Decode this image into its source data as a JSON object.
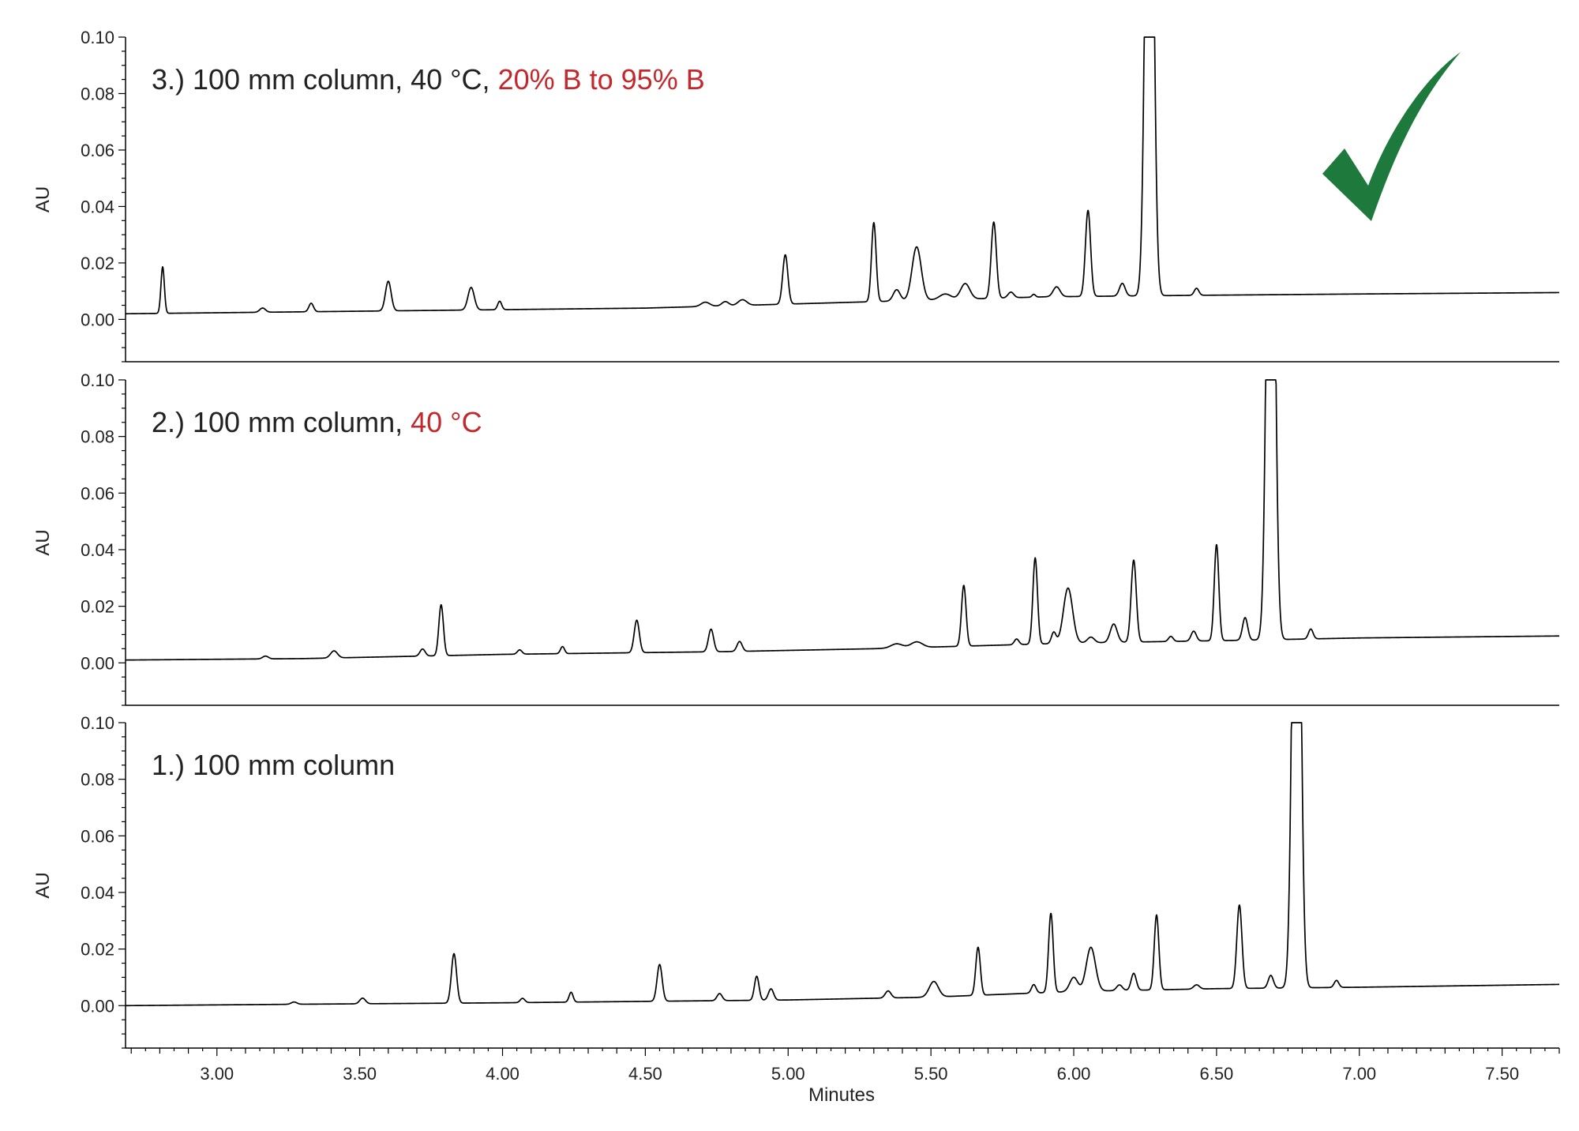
{
  "chart_data": {
    "type": "line",
    "xlabel": "Minutes",
    "xlim": [
      2.68,
      7.7
    ],
    "x_ticks": [
      "3.00",
      "3.50",
      "4.00",
      "4.50",
      "5.00",
      "5.50",
      "6.00",
      "6.50",
      "7.00",
      "7.50"
    ],
    "colors": {
      "trace": "#000000",
      "highlight": "#c3282d",
      "text": "#222222",
      "check": "#1e7a3c"
    },
    "panels": [
      {
        "title_parts": [
          "3.) 100 mm column, 40 °C, ",
          "20% B to 95% B"
        ],
        "ylabel": "AU",
        "ylim": [
          -0.015,
          0.1
        ],
        "y_ticks": [
          "0.10",
          "0.08",
          "0.06",
          "0.04",
          "0.02",
          "0.00"
        ],
        "check_icon": "checkmark-icon",
        "baseline": [
          [
            2.68,
            0.002
          ],
          [
            4.5,
            0.004
          ],
          [
            5.2,
            0.006
          ],
          [
            5.9,
            0.008
          ],
          [
            6.4,
            0.0085
          ],
          [
            7.0,
            0.009
          ],
          [
            7.7,
            0.0095
          ]
        ],
        "peaks": [
          [
            2.81,
            0.0165,
            0.006
          ],
          [
            3.16,
            0.0015,
            0.01
          ],
          [
            3.33,
            0.003,
            0.008
          ],
          [
            3.6,
            0.0105,
            0.01
          ],
          [
            3.89,
            0.008,
            0.011
          ],
          [
            3.99,
            0.003,
            0.007
          ],
          [
            4.71,
            0.0015,
            0.015
          ],
          [
            4.78,
            0.0015,
            0.012
          ],
          [
            4.84,
            0.002,
            0.015
          ],
          [
            4.99,
            0.0175,
            0.009
          ],
          [
            5.3,
            0.028,
            0.008
          ],
          [
            5.38,
            0.004,
            0.012
          ],
          [
            5.45,
            0.019,
            0.016
          ],
          [
            5.55,
            0.002,
            0.02
          ],
          [
            5.62,
            0.0055,
            0.016
          ],
          [
            5.72,
            0.027,
            0.009
          ],
          [
            5.78,
            0.002,
            0.01
          ],
          [
            5.86,
            0.001,
            0.006
          ],
          [
            5.94,
            0.0035,
            0.012
          ],
          [
            6.05,
            0.0305,
            0.009
          ],
          [
            6.17,
            0.0045,
            0.01
          ],
          [
            6.265,
            0.25,
            0.013
          ],
          [
            6.43,
            0.0025,
            0.008
          ]
        ]
      },
      {
        "title_parts": [
          "2.) 100 mm column, ",
          "40 °C"
        ],
        "ylabel": "AU",
        "ylim": [
          -0.015,
          0.1
        ],
        "y_ticks": [
          "0.10",
          "0.08",
          "0.06",
          "0.04",
          "0.02",
          "0.00"
        ],
        "baseline": [
          [
            2.68,
            0.001
          ],
          [
            3.3,
            0.0015
          ],
          [
            4.0,
            0.003
          ],
          [
            4.8,
            0.004
          ],
          [
            5.3,
            0.005
          ],
          [
            6.0,
            0.007
          ],
          [
            6.6,
            0.008
          ],
          [
            7.0,
            0.0088
          ],
          [
            7.7,
            0.0095
          ]
        ],
        "peaks": [
          [
            3.17,
            0.001,
            0.01
          ],
          [
            3.41,
            0.0025,
            0.012
          ],
          [
            3.72,
            0.0025,
            0.009
          ],
          [
            3.785,
            0.018,
            0.008
          ],
          [
            4.06,
            0.0015,
            0.008
          ],
          [
            4.21,
            0.0025,
            0.007
          ],
          [
            4.47,
            0.0115,
            0.009
          ],
          [
            4.73,
            0.008,
            0.009
          ],
          [
            4.83,
            0.0035,
            0.009
          ],
          [
            5.38,
            0.0015,
            0.02
          ],
          [
            5.45,
            0.002,
            0.02
          ],
          [
            5.615,
            0.0215,
            0.008
          ],
          [
            5.8,
            0.002,
            0.008
          ],
          [
            5.865,
            0.0305,
            0.008
          ],
          [
            5.93,
            0.004,
            0.008
          ],
          [
            5.98,
            0.0195,
            0.016
          ],
          [
            6.06,
            0.002,
            0.012
          ],
          [
            6.14,
            0.0065,
            0.012
          ],
          [
            6.21,
            0.029,
            0.009
          ],
          [
            6.34,
            0.0018,
            0.008
          ],
          [
            6.42,
            0.0035,
            0.009
          ],
          [
            6.5,
            0.034,
            0.008
          ],
          [
            6.6,
            0.008,
            0.009
          ],
          [
            6.69,
            0.25,
            0.013
          ],
          [
            6.83,
            0.0035,
            0.008
          ]
        ]
      },
      {
        "title_parts": [
          "1.) 100 mm column"
        ],
        "ylabel": "AU",
        "ylim": [
          -0.015,
          0.1
        ],
        "y_ticks": [
          "0.10",
          "0.08",
          "0.06",
          "0.04",
          "0.02",
          "0.00"
        ],
        "baseline": [
          [
            2.68,
            0.0
          ],
          [
            3.3,
            0.0005
          ],
          [
            4.0,
            0.001
          ],
          [
            5.0,
            0.002
          ],
          [
            5.5,
            0.003
          ],
          [
            6.0,
            0.005
          ],
          [
            6.5,
            0.006
          ],
          [
            7.0,
            0.0065
          ],
          [
            7.7,
            0.0075
          ]
        ],
        "peaks": [
          [
            3.27,
            0.0008,
            0.01
          ],
          [
            3.51,
            0.002,
            0.01
          ],
          [
            3.83,
            0.0175,
            0.009
          ],
          [
            4.07,
            0.0015,
            0.008
          ],
          [
            4.24,
            0.0035,
            0.007
          ],
          [
            4.55,
            0.013,
            0.009
          ],
          [
            4.76,
            0.0025,
            0.009
          ],
          [
            4.89,
            0.0085,
            0.008
          ],
          [
            4.94,
            0.004,
            0.009
          ],
          [
            5.35,
            0.0025,
            0.01
          ],
          [
            5.51,
            0.0055,
            0.016
          ],
          [
            5.665,
            0.017,
            0.008
          ],
          [
            5.86,
            0.003,
            0.008
          ],
          [
            5.92,
            0.028,
            0.008
          ],
          [
            6.0,
            0.005,
            0.014
          ],
          [
            6.06,
            0.0155,
            0.016
          ],
          [
            6.16,
            0.002,
            0.01
          ],
          [
            6.21,
            0.006,
            0.009
          ],
          [
            6.29,
            0.0265,
            0.008
          ],
          [
            6.43,
            0.0015,
            0.01
          ],
          [
            6.58,
            0.0295,
            0.009
          ],
          [
            6.69,
            0.0045,
            0.009
          ],
          [
            6.78,
            0.25,
            0.013
          ],
          [
            6.92,
            0.0025,
            0.008
          ]
        ]
      }
    ]
  }
}
